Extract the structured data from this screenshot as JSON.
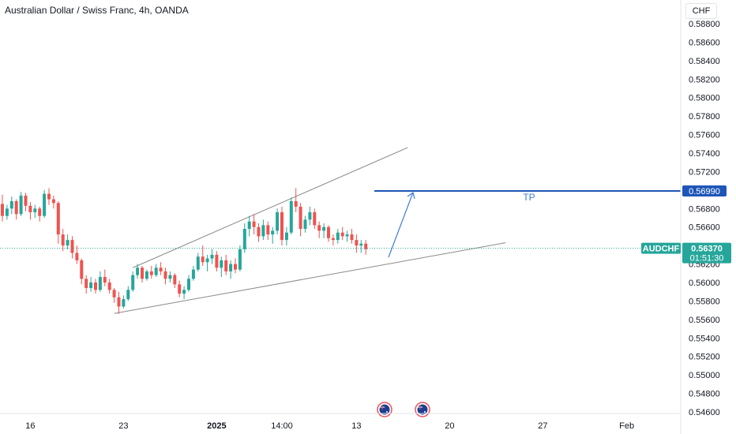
{
  "header": {
    "title": "Australian Dollar / Swiss Franc, 4h, OANDA",
    "currency": "CHF"
  },
  "colors": {
    "up": "#26a69a",
    "down": "#ef5350",
    "tp_line": "#1e56b8",
    "trend_line": "#8a8a8a",
    "arrow": "#3d7ad8",
    "price_line": "#26a69a"
  },
  "chart_data": {
    "type": "candlestick",
    "symbol": "AUDCHF",
    "interval": "4h",
    "y_axis": {
      "min": 0.5455,
      "max": 0.589,
      "ticks": [
        "0.58800",
        "0.58600",
        "0.58400",
        "0.58200",
        "0.58000",
        "0.57800",
        "0.57600",
        "0.57400",
        "0.57200",
        "0.56800",
        "0.56600",
        "0.56200",
        "0.56000",
        "0.55800",
        "0.55600",
        "0.55400",
        "0.55200",
        "0.55000",
        "0.54800",
        "0.54600"
      ]
    },
    "x_axis": {
      "ticks": [
        {
          "label": "16",
          "index": 6,
          "bold": false
        },
        {
          "label": "23",
          "index": 26,
          "bold": false
        },
        {
          "label": "2025",
          "index": 46,
          "bold": true
        },
        {
          "label": "14:00",
          "index": 60,
          "bold": false
        },
        {
          "label": "13",
          "index": 76,
          "bold": false
        },
        {
          "label": "20",
          "index": 96,
          "bold": false
        },
        {
          "label": "27",
          "index": 116,
          "bold": false
        },
        {
          "label": "Feb",
          "index": 134,
          "bold": false
        }
      ]
    },
    "candles": [
      [
        0.5685,
        0.5695,
        0.5666,
        0.5672
      ],
      [
        0.5672,
        0.5684,
        0.5668,
        0.568
      ],
      [
        0.568,
        0.5693,
        0.5674,
        0.5688
      ],
      [
        0.5688,
        0.569,
        0.5668,
        0.5674
      ],
      [
        0.5674,
        0.5698,
        0.5672,
        0.5694
      ],
      [
        0.5694,
        0.5697,
        0.5677,
        0.5683
      ],
      [
        0.5683,
        0.5687,
        0.5668,
        0.5676
      ],
      [
        0.5676,
        0.5684,
        0.567,
        0.568
      ],
      [
        0.568,
        0.5682,
        0.5666,
        0.5672
      ],
      [
        0.5672,
        0.57,
        0.567,
        0.5696
      ],
      [
        0.5696,
        0.5702,
        0.5684,
        0.569
      ],
      [
        0.569,
        0.5694,
        0.568,
        0.5686
      ],
      [
        0.5686,
        0.5688,
        0.5642,
        0.5652
      ],
      [
        0.5652,
        0.5658,
        0.5634,
        0.564
      ],
      [
        0.564,
        0.5652,
        0.5636,
        0.5646
      ],
      [
        0.5646,
        0.565,
        0.5626,
        0.5632
      ],
      [
        0.5632,
        0.564,
        0.562,
        0.5624
      ],
      [
        0.5624,
        0.5626,
        0.5598,
        0.5604
      ],
      [
        0.5604,
        0.5608,
        0.5588,
        0.5594
      ],
      [
        0.5594,
        0.5606,
        0.559,
        0.56
      ],
      [
        0.56,
        0.5604,
        0.5588,
        0.5592
      ],
      [
        0.5592,
        0.5612,
        0.559,
        0.5606
      ],
      [
        0.5606,
        0.5614,
        0.5596,
        0.56
      ],
      [
        0.56,
        0.5604,
        0.5588,
        0.5592
      ],
      [
        0.5592,
        0.5594,
        0.5578,
        0.5584
      ],
      [
        0.5584,
        0.559,
        0.5566,
        0.5574
      ],
      [
        0.5574,
        0.5586,
        0.5572,
        0.5582
      ],
      [
        0.5582,
        0.5596,
        0.558,
        0.5592
      ],
      [
        0.5592,
        0.5612,
        0.559,
        0.5608
      ],
      [
        0.5608,
        0.562,
        0.5604,
        0.5616
      ],
      [
        0.5616,
        0.5618,
        0.56,
        0.5604
      ],
      [
        0.5604,
        0.5614,
        0.5602,
        0.5612
      ],
      [
        0.5612,
        0.5618,
        0.5604,
        0.5608
      ],
      [
        0.5608,
        0.562,
        0.5606,
        0.5616
      ],
      [
        0.5616,
        0.5622,
        0.5608,
        0.5612
      ],
      [
        0.5612,
        0.5616,
        0.5598,
        0.5604
      ],
      [
        0.5604,
        0.5612,
        0.56,
        0.5608
      ],
      [
        0.5608,
        0.561,
        0.5594,
        0.5598
      ],
      [
        0.5598,
        0.5602,
        0.5584,
        0.5588
      ],
      [
        0.5588,
        0.5596,
        0.5582,
        0.5592
      ],
      [
        0.5592,
        0.5608,
        0.559,
        0.5604
      ],
      [
        0.5604,
        0.5618,
        0.5602,
        0.5614
      ],
      [
        0.5614,
        0.5632,
        0.5612,
        0.5628
      ],
      [
        0.5628,
        0.564,
        0.5618,
        0.5622
      ],
      [
        0.5622,
        0.563,
        0.5612,
        0.5626
      ],
      [
        0.5626,
        0.5636,
        0.562,
        0.563
      ],
      [
        0.563,
        0.5634,
        0.5612,
        0.5616
      ],
      [
        0.5616,
        0.5628,
        0.5606,
        0.5624
      ],
      [
        0.5624,
        0.563,
        0.5608,
        0.5612
      ],
      [
        0.5612,
        0.5624,
        0.5604,
        0.562
      ],
      [
        0.562,
        0.5626,
        0.561,
        0.5614
      ],
      [
        0.5614,
        0.564,
        0.5612,
        0.5636
      ],
      [
        0.5636,
        0.5664,
        0.5632,
        0.5658
      ],
      [
        0.5658,
        0.5672,
        0.565,
        0.5666
      ],
      [
        0.5666,
        0.5674,
        0.5652,
        0.566
      ],
      [
        0.566,
        0.5664,
        0.5644,
        0.565
      ],
      [
        0.565,
        0.5668,
        0.5646,
        0.5662
      ],
      [
        0.5662,
        0.5666,
        0.5646,
        0.5652
      ],
      [
        0.5652,
        0.566,
        0.5642,
        0.5656
      ],
      [
        0.5656,
        0.568,
        0.5652,
        0.5676
      ],
      [
        0.5676,
        0.5682,
        0.564,
        0.5646
      ],
      [
        0.5646,
        0.566,
        0.564,
        0.5654
      ],
      [
        0.5654,
        0.5692,
        0.5652,
        0.5688
      ],
      [
        0.5688,
        0.5702,
        0.5676,
        0.5682
      ],
      [
        0.5682,
        0.5686,
        0.565,
        0.5658
      ],
      [
        0.5658,
        0.5672,
        0.5654,
        0.5668
      ],
      [
        0.5668,
        0.5682,
        0.5662,
        0.5676
      ],
      [
        0.5676,
        0.568,
        0.5658,
        0.5662
      ],
      [
        0.5662,
        0.5666,
        0.5648,
        0.5656
      ],
      [
        0.5656,
        0.5664,
        0.5648,
        0.566
      ],
      [
        0.566,
        0.5662,
        0.5644,
        0.5648
      ],
      [
        0.5648,
        0.5652,
        0.564,
        0.5646
      ],
      [
        0.5646,
        0.5658,
        0.5642,
        0.5654
      ],
      [
        0.5654,
        0.566,
        0.5646,
        0.565
      ],
      [
        0.565,
        0.5656,
        0.5644,
        0.5652
      ],
      [
        0.5652,
        0.5658,
        0.5642,
        0.5646
      ],
      [
        0.5646,
        0.5652,
        0.5632,
        0.564
      ],
      [
        0.564,
        0.5646,
        0.5632,
        0.5642
      ],
      [
        0.5642,
        0.5646,
        0.563,
        0.5636
      ]
    ],
    "current_price": 0.5637,
    "tp_level": 0.5699
  },
  "labels": {
    "symbol": "AUDCHF",
    "price": "0.56370",
    "countdown": "01:51:30",
    "tp_price": "0.56990",
    "tp_text": "TP"
  }
}
